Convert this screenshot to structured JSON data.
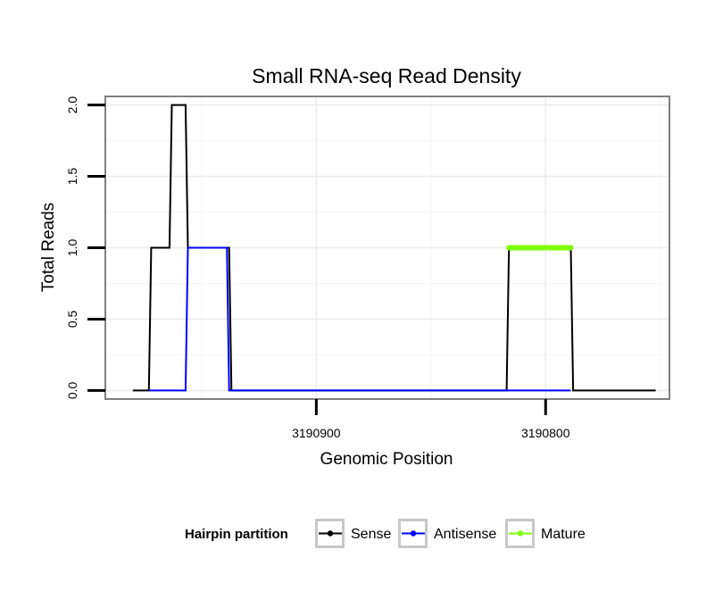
{
  "chart_data": {
    "type": "line",
    "title": "Small RNA-seq Read Density",
    "xlabel": "Genomic Position",
    "ylabel": "Total Reads",
    "xlim": [
      3190992,
      3190746
    ],
    "ylim": [
      -0.06,
      2.06
    ],
    "x_reversed": true,
    "x_ticks": [
      3190900,
      3190800
    ],
    "x_tick_labels": [
      "3190900",
      "3190800"
    ],
    "y_ticks": [
      0.0,
      0.5,
      1.0,
      1.5,
      2.0
    ],
    "y_tick_labels": [
      "0.0",
      "0.5",
      "1.0",
      "1.5",
      "2.0"
    ],
    "grid": true,
    "legend_position": "bottom",
    "legend_title": "Hairpin partition",
    "series": [
      {
        "name": "Sense",
        "color": "#000000",
        "x": [
          3190980,
          3190973,
          3190972,
          3190964,
          3190963,
          3190957,
          3190956,
          3190938,
          3190937,
          3190817,
          3190816,
          3190789,
          3190788,
          3190752
        ],
        "y": [
          0,
          0,
          1,
          1,
          2,
          2,
          1,
          1,
          0,
          0,
          1,
          1,
          0,
          0
        ]
      },
      {
        "name": "Antisense",
        "color": "#0000ff",
        "x": [
          3190973,
          3190957,
          3190956,
          3190939,
          3190938,
          3190789
        ],
        "y": [
          0,
          0,
          1,
          1,
          0,
          0
        ]
      },
      {
        "name": "Mature",
        "color": "#7fff00",
        "x": [
          3190816,
          3190789
        ],
        "y": [
          1,
          1
        ]
      }
    ]
  }
}
